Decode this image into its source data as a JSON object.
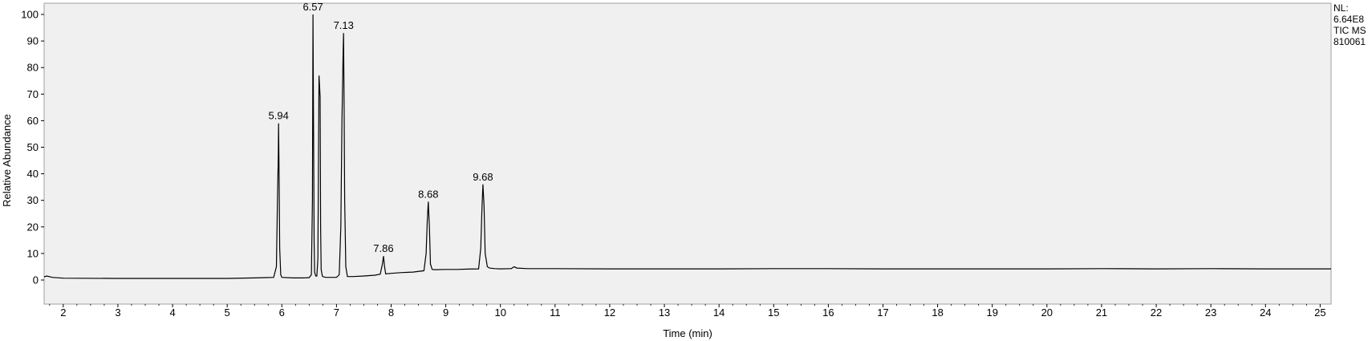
{
  "chart_data": {
    "type": "line",
    "xlabel": "Time (min)",
    "ylabel": "Relative Abundance",
    "xlim": [
      1.65,
      25.2
    ],
    "ylim": [
      0,
      100
    ],
    "x_ticks": [
      2,
      3,
      4,
      5,
      6,
      7,
      8,
      9,
      10,
      11,
      12,
      13,
      14,
      15,
      16,
      17,
      18,
      19,
      20,
      21,
      22,
      23,
      24,
      25
    ],
    "y_ticks": [
      0,
      10,
      20,
      30,
      40,
      50,
      60,
      70,
      80,
      90,
      100
    ],
    "grid": false,
    "plot_background": "#f0f0f0",
    "line_color": "#000000",
    "series": [
      {
        "x": [
          1.65,
          1.7,
          1.8,
          2.0,
          3.0,
          4.0,
          5.0,
          5.5,
          5.7,
          5.85,
          5.9,
          5.92,
          5.935,
          5.94,
          5.95,
          5.96,
          5.98,
          6.0,
          6.2,
          6.4,
          6.5,
          6.54,
          6.56,
          6.57,
          6.58,
          6.59,
          6.6,
          6.62,
          6.64,
          6.66,
          6.68,
          6.7,
          6.71,
          6.72,
          6.74,
          6.76,
          6.8,
          6.9,
          7.0,
          7.05,
          7.08,
          7.1,
          7.12,
          7.13,
          7.14,
          7.15,
          7.17,
          7.2,
          7.3,
          7.5,
          7.7,
          7.8,
          7.84,
          7.86,
          7.88,
          7.9,
          8.0,
          8.2,
          8.4,
          8.6,
          8.64,
          8.66,
          8.68,
          8.7,
          8.72,
          8.75,
          8.8,
          9.0,
          9.2,
          9.4,
          9.6,
          9.64,
          9.66,
          9.68,
          9.7,
          9.72,
          9.76,
          9.8,
          9.9,
          10.0,
          10.2,
          10.25,
          10.3,
          10.5,
          11.0,
          12.0,
          13.0,
          14.0,
          15.0,
          16.0,
          17.0,
          18.0,
          19.0,
          20.0,
          21.0,
          22.0,
          23.0,
          24.0,
          25.0,
          25.2
        ],
        "y": [
          1.2,
          1.5,
          1.0,
          0.7,
          0.6,
          0.6,
          0.6,
          0.8,
          0.9,
          1.0,
          5.0,
          30.0,
          48.0,
          59.0,
          38.0,
          12.0,
          2.0,
          1.0,
          0.8,
          0.8,
          0.9,
          2.0,
          30.0,
          100.0,
          57.0,
          15.0,
          3.0,
          1.5,
          1.5,
          8.0,
          77.0,
          69.0,
          20.0,
          4.0,
          1.5,
          1.2,
          1.0,
          1.0,
          1.0,
          2.0,
          20.0,
          60.0,
          85.0,
          93.0,
          65.0,
          30.0,
          5.0,
          1.3,
          1.3,
          1.5,
          1.8,
          2.2,
          6.0,
          9.0,
          5.0,
          2.3,
          2.5,
          2.8,
          3.0,
          3.5,
          10.0,
          22.0,
          29.5,
          20.0,
          6.0,
          4.0,
          3.9,
          4.0,
          4.0,
          4.1,
          4.2,
          12.0,
          26.0,
          36.0,
          28.0,
          10.0,
          5.0,
          4.5,
          4.3,
          4.2,
          4.3,
          5.0,
          4.5,
          4.3,
          4.3,
          4.2,
          4.2,
          4.2,
          4.3,
          4.3,
          4.2,
          4.2,
          4.2,
          4.2,
          4.3,
          4.2,
          4.3,
          4.2,
          4.2,
          4.2
        ]
      }
    ],
    "annotations": [
      {
        "x": 5.94,
        "y": 59,
        "label": "5.94"
      },
      {
        "x": 6.57,
        "y": 100,
        "label": "6.57"
      },
      {
        "x": 7.13,
        "y": 93,
        "label": "7.13"
      },
      {
        "x": 7.86,
        "y": 9,
        "label": "7.86"
      },
      {
        "x": 8.68,
        "y": 29.5,
        "label": "8.68"
      },
      {
        "x": 9.68,
        "y": 36,
        "label": "9.68"
      }
    ]
  },
  "side_note": {
    "line1": "NL:",
    "line2": "6.64E8",
    "line3": "TIC  MS",
    "line4": "810061"
  }
}
